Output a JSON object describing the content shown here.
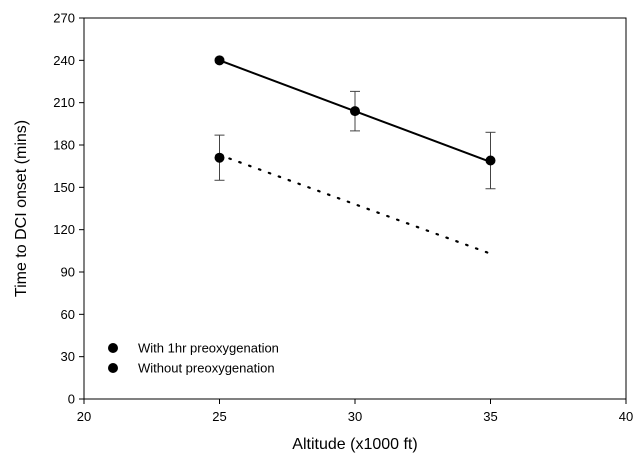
{
  "chart_data": {
    "type": "scatter",
    "xlabel": "Altitude (x1000 ft)",
    "ylabel": "Time to DCI onset (mins)",
    "xlim": [
      20,
      40
    ],
    "ylim": [
      0,
      270
    ],
    "xticks": [
      20,
      25,
      30,
      35,
      40
    ],
    "yticks": [
      0,
      30,
      60,
      90,
      120,
      150,
      180,
      210,
      240,
      270
    ],
    "grid": false,
    "legend_position": "bottom-left",
    "series": [
      {
        "name": "With 1hr preoxygenation",
        "color": "#000000",
        "marker": "circle",
        "x": [
          25,
          30,
          35
        ],
        "y": [
          240,
          204,
          169
        ],
        "error": [
          0,
          14,
          20
        ],
        "fit_line": {
          "x": [
            25,
            35
          ],
          "y": [
            240,
            168
          ],
          "style": "solid"
        }
      },
      {
        "name": "Without preoxygenation",
        "color": "#000000",
        "marker": "circle",
        "x": [
          25
        ],
        "y": [
          171
        ],
        "error": [
          16
        ],
        "fit_line": {
          "x": [
            25,
            35
          ],
          "y": [
            173,
            103
          ],
          "style": "dotted"
        }
      }
    ]
  }
}
